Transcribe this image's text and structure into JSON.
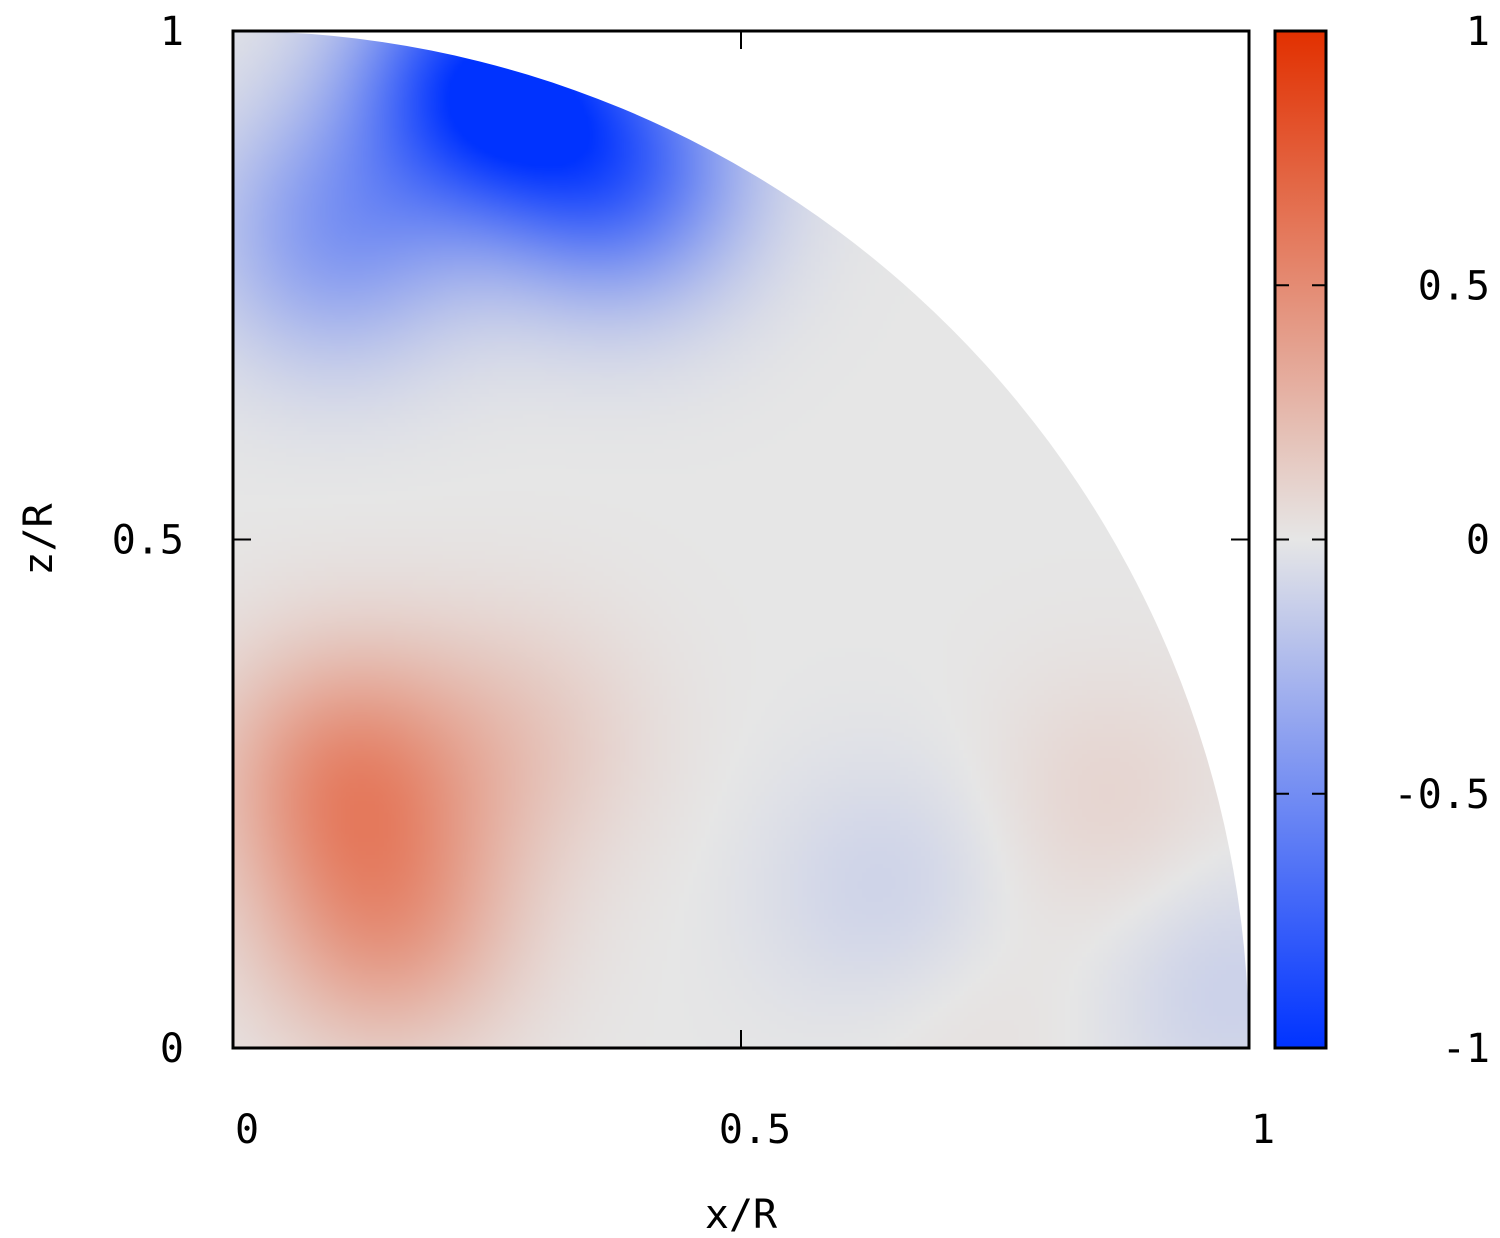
{
  "chart_data": {
    "type": "heatmap",
    "title": "",
    "xlabel": "x/R",
    "ylabel": "z/R",
    "xlim": [
      0,
      1
    ],
    "ylim": [
      0,
      1
    ],
    "x_ticks": [
      {
        "value": 0,
        "label": "0"
      },
      {
        "value": 0.5,
        "label": "0.5"
      },
      {
        "value": 1,
        "label": "1"
      }
    ],
    "y_ticks": [
      {
        "value": 0,
        "label": "0"
      },
      {
        "value": 0.5,
        "label": "0.5"
      },
      {
        "value": 1,
        "label": "1"
      }
    ],
    "domain_shape": "quarter disk of radius 1",
    "colorbar": {
      "range": [
        -1,
        1
      ],
      "ticks": [
        {
          "value": 1,
          "label": "1"
        },
        {
          "value": 0.5,
          "label": "0.5"
        },
        {
          "value": 0,
          "label": "0"
        },
        {
          "value": -0.5,
          "label": "-0.5"
        },
        {
          "value": -1,
          "label": "-1"
        }
      ],
      "colormap": {
        "low": "#0033ff",
        "mid": "#e6e6e6",
        "high": "#e23000"
      }
    },
    "features": [
      {
        "x": 0.11,
        "z": 0.27,
        "value": 0.45
      },
      {
        "x": 0.15,
        "z": 0.12,
        "value": 0.38
      },
      {
        "x": 0.28,
        "z": 0.3,
        "value": 0.15
      },
      {
        "x": 0.25,
        "z": 0.95,
        "value": -0.95
      },
      {
        "x": 0.38,
        "z": 0.86,
        "value": -0.65
      },
      {
        "x": 0.1,
        "z": 0.8,
        "value": -0.4
      },
      {
        "x": 0.65,
        "z": 0.15,
        "value": -0.12
      },
      {
        "x": 0.86,
        "z": 0.24,
        "value": 0.1
      },
      {
        "x": 0.72,
        "z": 0.05,
        "value": 0.05
      },
      {
        "x": 0.98,
        "z": 0.06,
        "value": -0.12
      }
    ]
  }
}
